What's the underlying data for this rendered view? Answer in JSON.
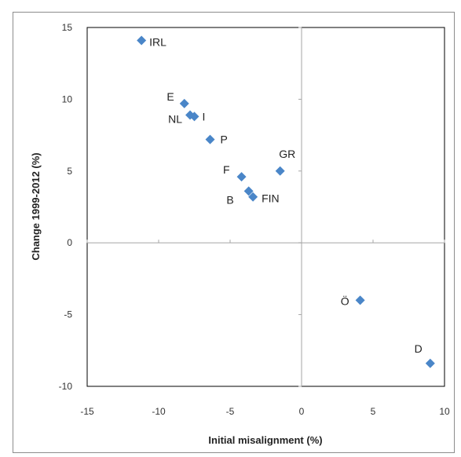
{
  "chart_data": {
    "type": "scatter",
    "title": "",
    "xlabel": "Initial misalignment (%)",
    "ylabel": "Change 1999-2012 (%)",
    "xlim": [
      -15,
      10
    ],
    "ylim": [
      -10,
      15
    ],
    "xticks": [
      -15,
      -10,
      -5,
      0,
      5,
      10
    ],
    "yticks": [
      -10,
      -5,
      0,
      5,
      10,
      15
    ],
    "grid": false,
    "legend": "none",
    "marker": "diamond",
    "marker_color": "#4a86c8",
    "points": [
      {
        "label": "IRL",
        "x": -11.2,
        "y": 14.1
      },
      {
        "label": "E",
        "x": -8.2,
        "y": 9.7
      },
      {
        "label": "NL",
        "x": -7.8,
        "y": 8.9
      },
      {
        "label": "I",
        "x": -7.5,
        "y": 8.8
      },
      {
        "label": "P",
        "x": -6.4,
        "y": 7.2
      },
      {
        "label": "F",
        "x": -4.2,
        "y": 4.6
      },
      {
        "label": "B",
        "x": -3.7,
        "y": 3.6
      },
      {
        "label": "FIN",
        "x": -3.4,
        "y": 3.2
      },
      {
        "label": "GR",
        "x": -1.5,
        "y": 5.0
      },
      {
        "label": "Ö",
        "x": 4.1,
        "y": -4.0
      },
      {
        "label": "D",
        "x": 9.0,
        "y": -8.4
      }
    ]
  }
}
